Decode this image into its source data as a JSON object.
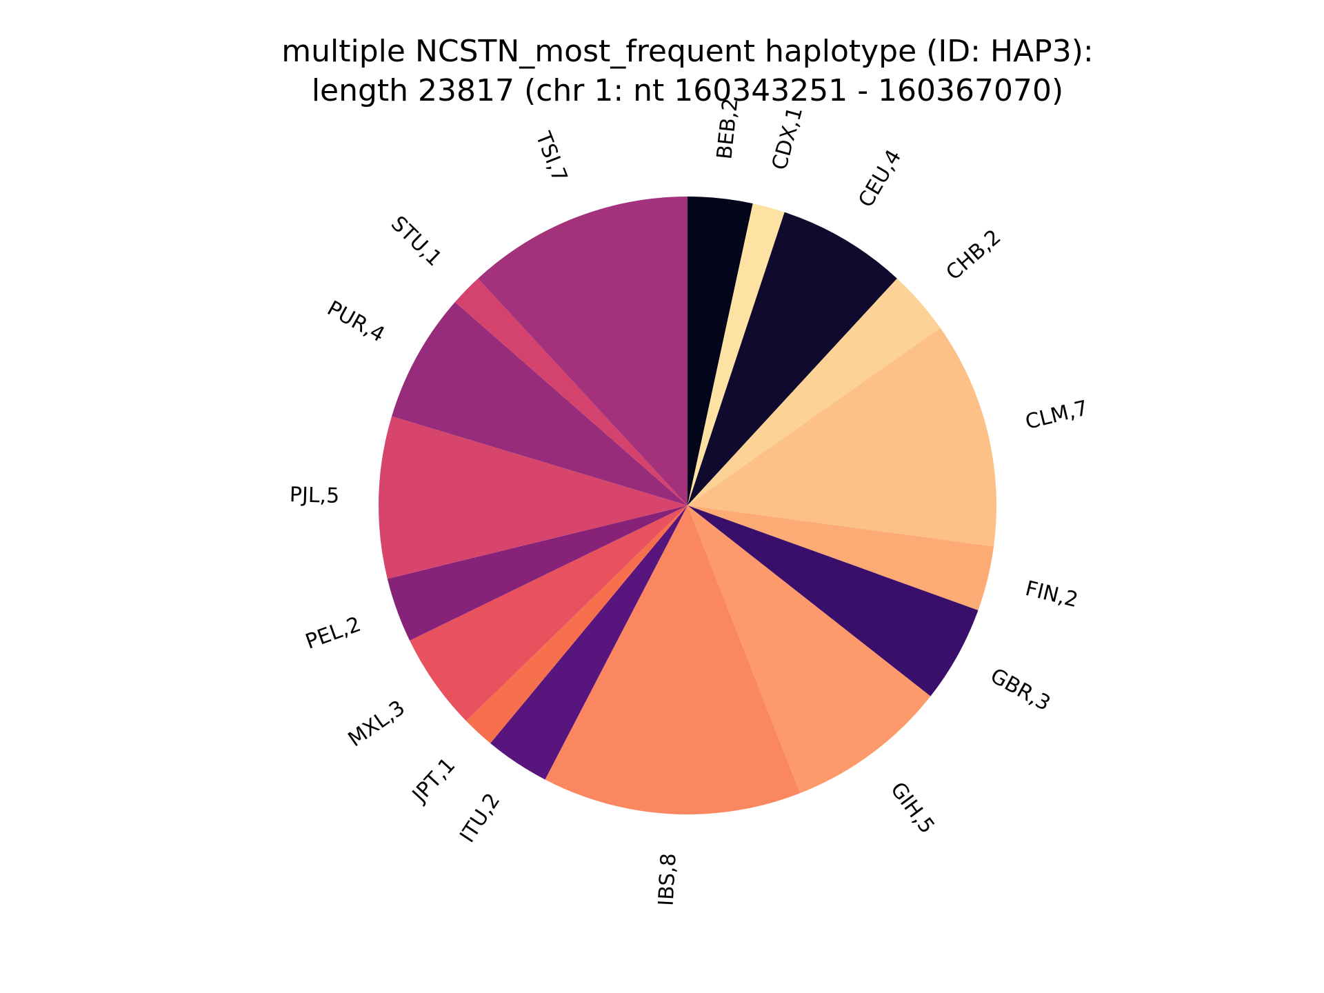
{
  "chart_data": {
    "type": "pie",
    "title": "multiple NCSTN_most_frequent haplotype (ID: HAP3):",
    "subtitle": "length 23817 (chr 1: nt 160343251 - 160367070)",
    "start_angle": "top",
    "direction": "clockwise",
    "slices": [
      {
        "label": "BEB,2",
        "value": 2,
        "color": "#03051a"
      },
      {
        "label": "CDX,1",
        "value": 1,
        "color": "#fde2a3"
      },
      {
        "label": "CEU,4",
        "value": 4,
        "color": "#100b2e"
      },
      {
        "label": "CHB,2",
        "value": 2,
        "color": "#fcd296"
      },
      {
        "label": "CLM,7",
        "value": 7,
        "color": "#fdc086"
      },
      {
        "label": "FIN,2",
        "value": 2,
        "color": "#fcab74"
      },
      {
        "label": "GBR,3",
        "value": 3,
        "color": "#3a0f6b"
      },
      {
        "label": "GIH,5",
        "value": 5,
        "color": "#fc9a6b"
      },
      {
        "label": "IBS,8",
        "value": 8,
        "color": "#fa875f"
      },
      {
        "label": "ITU,2",
        "value": 2,
        "color": "#59157e"
      },
      {
        "label": "JPT,1",
        "value": 1,
        "color": "#f7704e"
      },
      {
        "label": "MXL,3",
        "value": 3,
        "color": "#e8525f"
      },
      {
        "label": "PEL,2",
        "value": 2,
        "color": "#862378"
      },
      {
        "label": "PJL,5",
        "value": 5,
        "color": "#d8456c"
      },
      {
        "label": "PUR,4",
        "value": 4,
        "color": "#962c7b"
      },
      {
        "label": "STU,1",
        "value": 1,
        "color": "#d3436e"
      },
      {
        "label": "TSI,7",
        "value": 7,
        "color": "#a3317b"
      }
    ]
  }
}
